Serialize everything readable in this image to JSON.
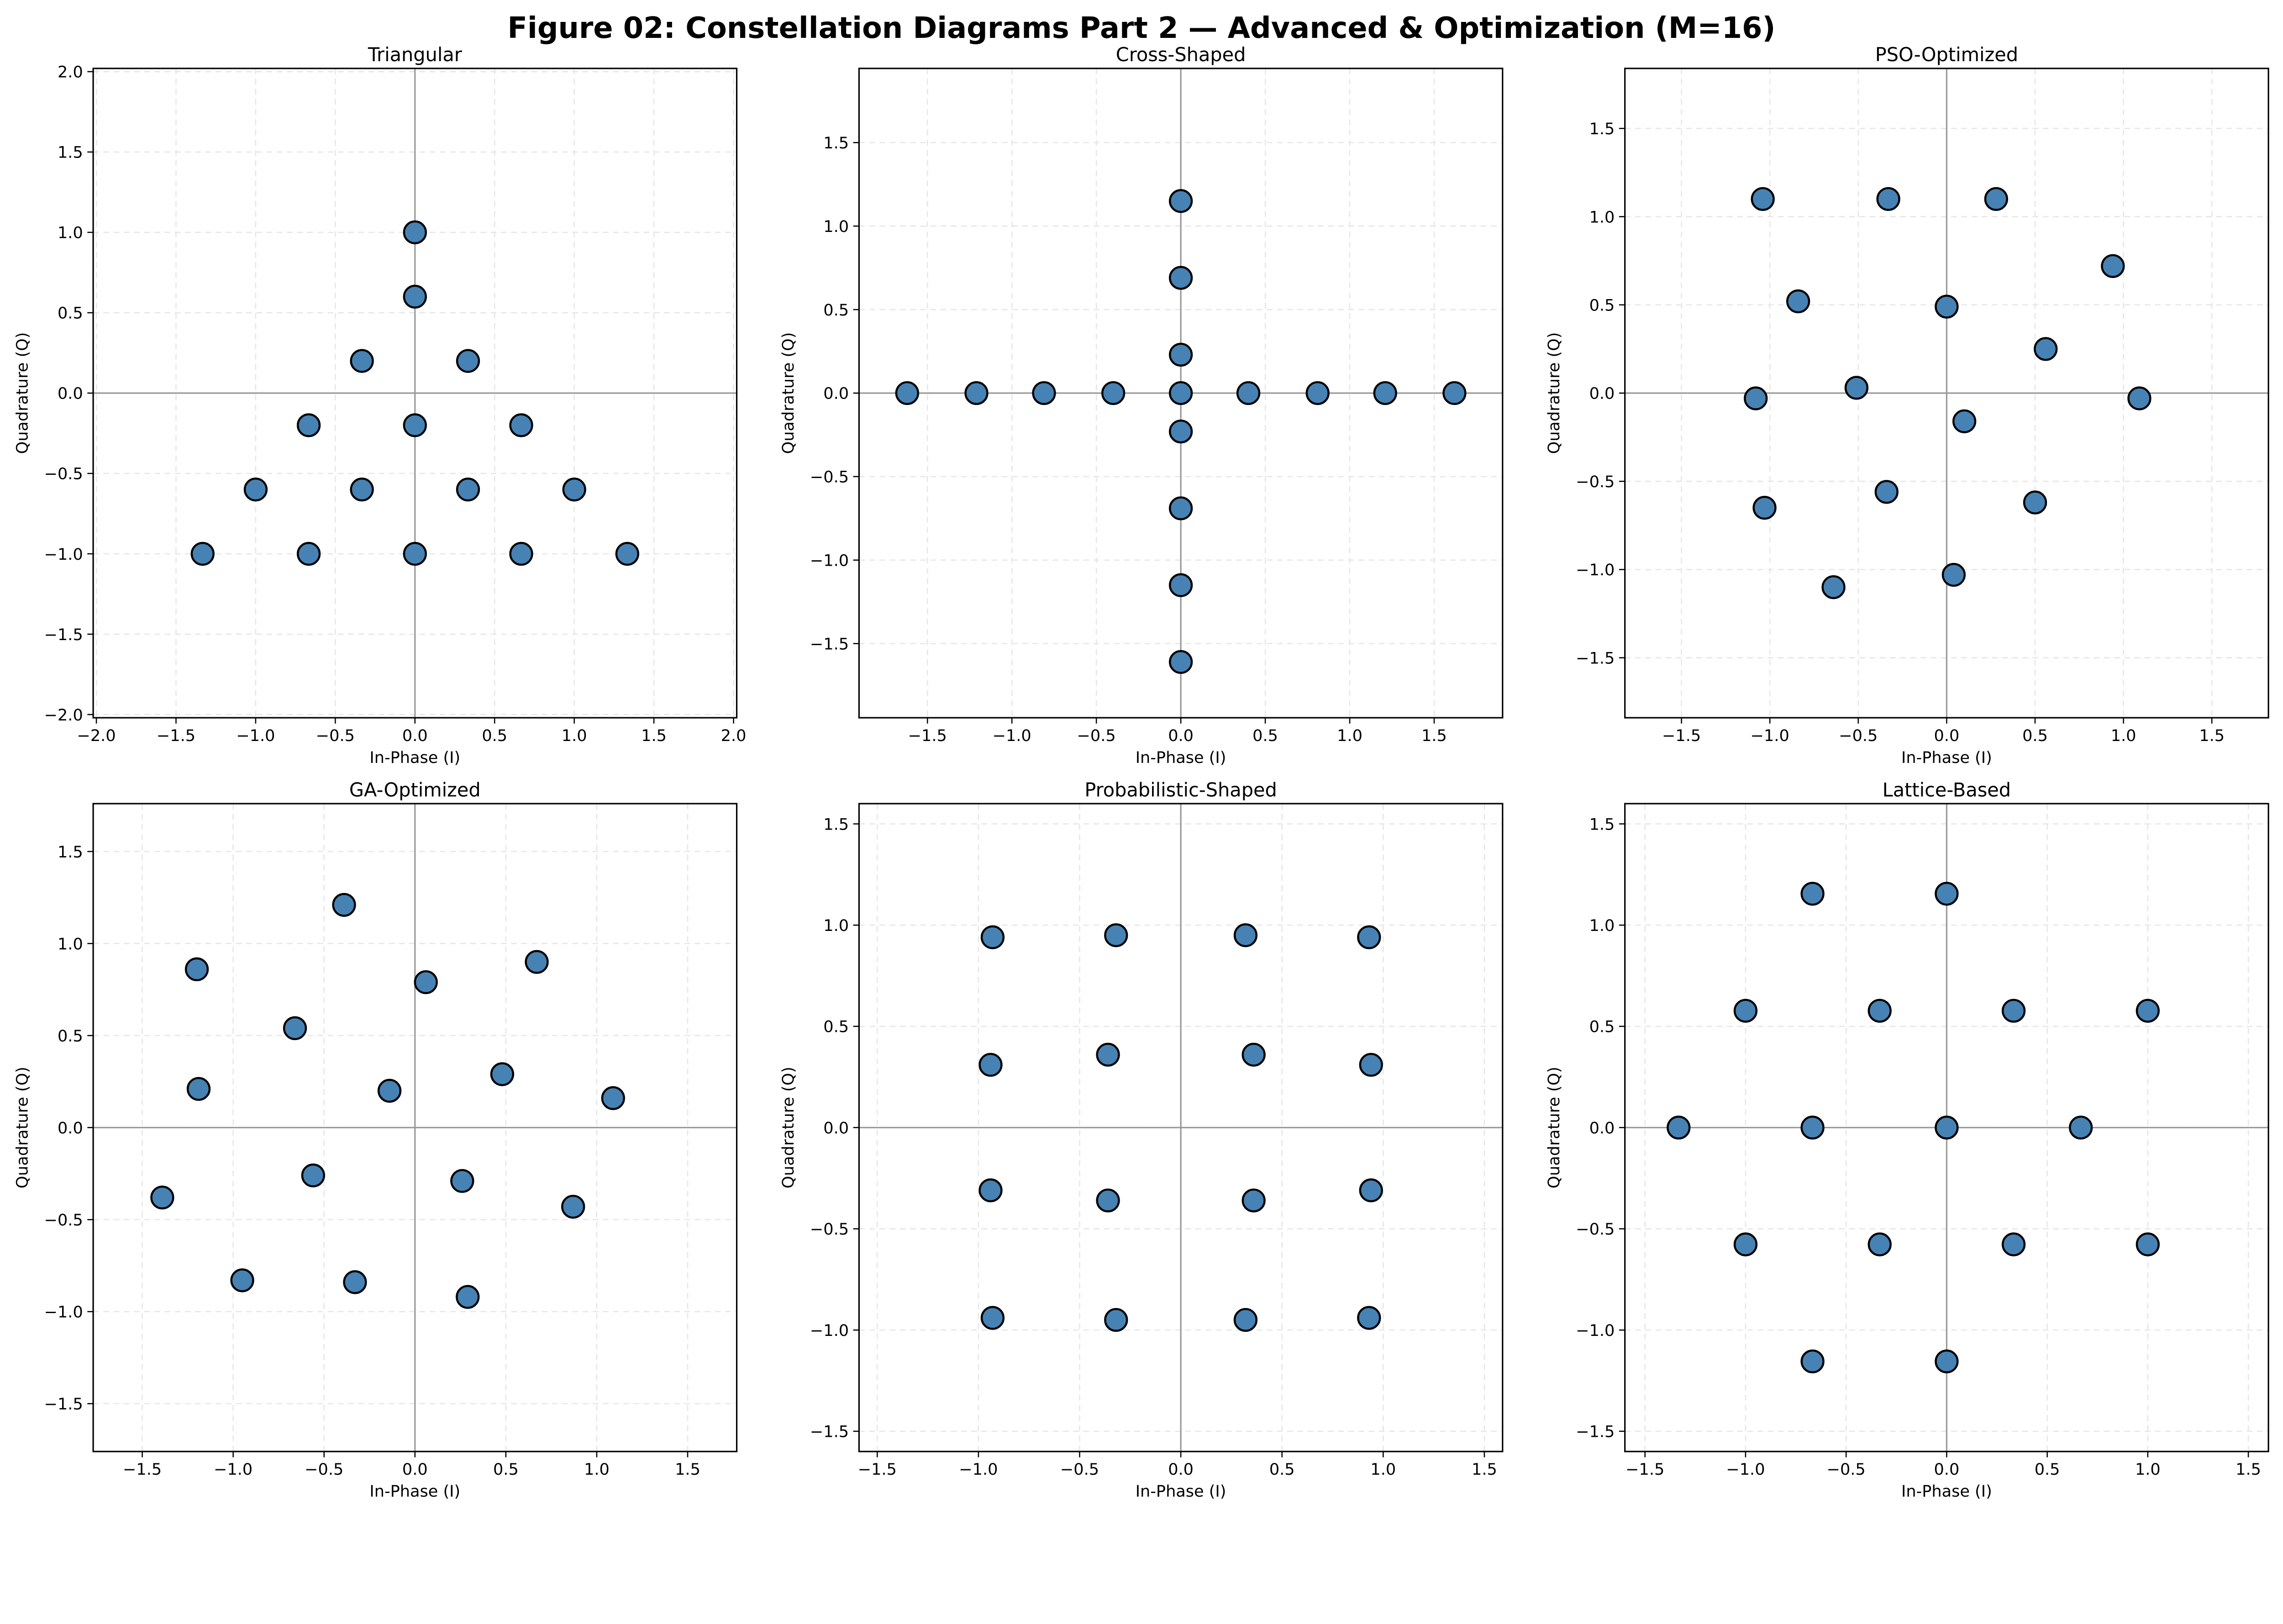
{
  "figure_title": "Figure 02: Constellation Diagrams Part 2 — Advanced & Optimization (M=16)",
  "colors": {
    "marker_fill": "#4682b4",
    "marker_edge": "#000000",
    "grid": "#e6e6e6",
    "zero_axis": "#999999"
  },
  "chart_data": [
    {
      "type": "scatter",
      "title": "Triangular",
      "xlabel": "In-Phase (I)",
      "ylabel": "Quadrature (Q)",
      "xlim": [
        -2.02,
        2.02
      ],
      "ylim": [
        -2.02,
        2.02
      ],
      "grid": true,
      "xticks": [
        -2.0,
        -1.5,
        -1.0,
        -0.5,
        0.0,
        0.5,
        1.0,
        1.5,
        2.0
      ],
      "xtick_labels": [
        "−2.0",
        "−1.5",
        "−1.0",
        "−0.5",
        "0.0",
        "0.5",
        "1.0",
        "1.5",
        "2.0"
      ],
      "yticks": [
        -2.0,
        -1.5,
        -1.0,
        -0.5,
        0.0,
        0.5,
        1.0,
        1.5,
        2.0
      ],
      "ytick_labels": [
        "−2.0",
        "−1.5",
        "−1.0",
        "−0.5",
        "0.0",
        "0.5",
        "1.0",
        "1.5",
        "2.0"
      ],
      "points": [
        [
          0,
          1
        ],
        [
          0,
          0.6
        ],
        [
          -0.333,
          0.2
        ],
        [
          0.333,
          0.2
        ],
        [
          -0.667,
          -0.2
        ],
        [
          0,
          -0.2
        ],
        [
          0.667,
          -0.2
        ],
        [
          -1,
          -0.6
        ],
        [
          -0.333,
          -0.6
        ],
        [
          0.333,
          -0.6
        ],
        [
          1,
          -0.6
        ],
        [
          -1.333,
          -1
        ],
        [
          -0.667,
          -1
        ],
        [
          0,
          -1
        ],
        [
          0.667,
          -1
        ],
        [
          1.333,
          -1
        ]
      ]
    },
    {
      "type": "scatter",
      "title": "Cross-Shaped",
      "xlabel": "In-Phase (I)",
      "ylabel": "Quadrature (Q)",
      "xlim": [
        -1.905,
        1.905
      ],
      "ylim": [
        -1.944,
        1.944
      ],
      "grid": true,
      "xticks": [
        -1.5,
        -1.0,
        -0.5,
        0.0,
        0.5,
        1.0,
        1.5
      ],
      "xtick_labels": [
        "−1.5",
        "−1.0",
        "−0.5",
        "0.0",
        "0.5",
        "1.0",
        "1.5"
      ],
      "yticks": [
        -1.5,
        -1.0,
        -0.5,
        0.0,
        0.5,
        1.0,
        1.5
      ],
      "ytick_labels": [
        "−1.5",
        "−1.0",
        "−0.5",
        "0.0",
        "0.5",
        "1.0",
        "1.5"
      ],
      "points": [
        [
          -1.62,
          0
        ],
        [
          -1.21,
          0
        ],
        [
          -0.81,
          0
        ],
        [
          -0.4,
          0
        ],
        [
          0,
          0
        ],
        [
          0.4,
          0
        ],
        [
          0.81,
          0
        ],
        [
          1.21,
          0
        ],
        [
          1.62,
          0
        ],
        [
          0,
          1.15
        ],
        [
          0,
          0.69
        ],
        [
          0,
          0.23
        ],
        [
          0,
          -0.23
        ],
        [
          0,
          -0.69
        ],
        [
          0,
          -1.15
        ],
        [
          0,
          -1.61
        ]
      ]
    },
    {
      "type": "scatter",
      "title": "PSO-Optimized",
      "xlabel": "In-Phase (I)",
      "ylabel": "Quadrature (Q)",
      "xlim": [
        -1.82,
        1.82
      ],
      "ylim": [
        -1.84,
        1.84
      ],
      "grid": true,
      "xticks": [
        -1.5,
        -1.0,
        -0.5,
        0.0,
        0.5,
        1.0,
        1.5
      ],
      "xtick_labels": [
        "−1.5",
        "−1.0",
        "−0.5",
        "0.0",
        "0.5",
        "1.0",
        "1.5"
      ],
      "yticks": [
        -1.5,
        -1.0,
        -0.5,
        0.0,
        0.5,
        1.0,
        1.5
      ],
      "ytick_labels": [
        "−1.5",
        "−1.0",
        "−0.5",
        "0.0",
        "0.5",
        "1.0",
        "1.5"
      ],
      "points": [
        [
          -1.04,
          1.1
        ],
        [
          -0.33,
          1.1
        ],
        [
          0.28,
          1.1
        ],
        [
          0.94,
          0.72
        ],
        [
          -0.84,
          0.52
        ],
        [
          0,
          0.49
        ],
        [
          0.56,
          0.25
        ],
        [
          -1.08,
          -0.03
        ],
        [
          -0.51,
          0.03
        ],
        [
          1.09,
          -0.03
        ],
        [
          0.1,
          -0.16
        ],
        [
          -1.03,
          -0.65
        ],
        [
          -0.34,
          -0.56
        ],
        [
          0.5,
          -0.62
        ],
        [
          -0.64,
          -1.1
        ],
        [
          0.04,
          -1.03
        ]
      ]
    },
    {
      "type": "scatter",
      "title": "GA-Optimized",
      "xlabel": "In-Phase (I)",
      "ylabel": "Quadrature (Q)",
      "xlim": [
        -1.77,
        1.77
      ],
      "ylim": [
        -1.76,
        1.76
      ],
      "grid": true,
      "xticks": [
        -1.5,
        -1.0,
        -0.5,
        0.0,
        0.5,
        1.0,
        1.5
      ],
      "xtick_labels": [
        "−1.5",
        "−1.0",
        "−0.5",
        "0.0",
        "0.5",
        "1.0",
        "1.5"
      ],
      "yticks": [
        -1.5,
        -1.0,
        -0.5,
        0.0,
        0.5,
        1.0,
        1.5
      ],
      "ytick_labels": [
        "−1.5",
        "−1.0",
        "−0.5",
        "0.0",
        "0.5",
        "1.0",
        "1.5"
      ],
      "points": [
        [
          -0.39,
          1.21
        ],
        [
          -1.2,
          0.86
        ],
        [
          0.67,
          0.9
        ],
        [
          0.06,
          0.79
        ],
        [
          -0.66,
          0.54
        ],
        [
          0.48,
          0.29
        ],
        [
          -1.19,
          0.21
        ],
        [
          -0.14,
          0.2
        ],
        [
          1.09,
          0.16
        ],
        [
          -0.56,
          -0.26
        ],
        [
          0.26,
          -0.29
        ],
        [
          -1.39,
          -0.38
        ],
        [
          0.87,
          -0.43
        ],
        [
          -0.95,
          -0.83
        ],
        [
          -0.33,
          -0.84
        ],
        [
          0.29,
          -0.92
        ]
      ]
    },
    {
      "type": "scatter",
      "title": "Probabilistic-Shaped",
      "xlabel": "In-Phase (I)",
      "ylabel": "Quadrature (Q)",
      "xlim": [
        -1.59,
        1.59
      ],
      "ylim": [
        -1.6,
        1.6
      ],
      "grid": true,
      "xticks": [
        -1.5,
        -1.0,
        -0.5,
        0.0,
        0.5,
        1.0,
        1.5
      ],
      "xtick_labels": [
        "−1.5",
        "−1.0",
        "−0.5",
        "0.0",
        "0.5",
        "1.0",
        "1.5"
      ],
      "yticks": [
        -1.5,
        -1.0,
        -0.5,
        0.0,
        0.5,
        1.0,
        1.5
      ],
      "ytick_labels": [
        "−1.5",
        "−1.0",
        "−0.5",
        "0.0",
        "0.5",
        "1.0",
        "1.5"
      ],
      "points": [
        [
          -0.93,
          0.94
        ],
        [
          -0.32,
          0.95
        ],
        [
          0.32,
          0.95
        ],
        [
          0.93,
          0.94
        ],
        [
          -0.94,
          0.31
        ],
        [
          -0.36,
          0.36
        ],
        [
          0.36,
          0.36
        ],
        [
          0.94,
          0.31
        ],
        [
          -0.94,
          -0.31
        ],
        [
          -0.36,
          -0.36
        ],
        [
          0.36,
          -0.36
        ],
        [
          0.94,
          -0.31
        ],
        [
          -0.93,
          -0.94
        ],
        [
          -0.32,
          -0.95
        ],
        [
          0.32,
          -0.95
        ],
        [
          0.93,
          -0.94
        ]
      ]
    },
    {
      "type": "scatter",
      "title": "Lattice-Based",
      "xlabel": "In-Phase (I)",
      "ylabel": "Quadrature (Q)",
      "xlim": [
        -1.6,
        1.6
      ],
      "ylim": [
        -1.6,
        1.6
      ],
      "grid": true,
      "xticks": [
        -1.5,
        -1.0,
        -0.5,
        0.0,
        0.5,
        1.0,
        1.5
      ],
      "xtick_labels": [
        "−1.5",
        "−1.0",
        "−0.5",
        "0.0",
        "0.5",
        "1.0",
        "1.5"
      ],
      "yticks": [
        -1.5,
        -1.0,
        -0.5,
        0.0,
        0.5,
        1.0,
        1.5
      ],
      "ytick_labels": [
        "−1.5",
        "−1.0",
        "−0.5",
        "0.0",
        "0.5",
        "1.0",
        "1.5"
      ],
      "points": [
        [
          -0.667,
          1.155
        ],
        [
          0,
          1.155
        ],
        [
          -1,
          0.577
        ],
        [
          -0.333,
          0.577
        ],
        [
          0.333,
          0.577
        ],
        [
          1,
          0.577
        ],
        [
          -1.333,
          0
        ],
        [
          -0.667,
          0
        ],
        [
          0,
          0
        ],
        [
          0.667,
          0
        ],
        [
          -1,
          -0.577
        ],
        [
          -0.333,
          -0.577
        ],
        [
          0.333,
          -0.577
        ],
        [
          1,
          -0.577
        ],
        [
          -0.667,
          -1.155
        ],
        [
          0,
          -1.155
        ]
      ]
    }
  ]
}
